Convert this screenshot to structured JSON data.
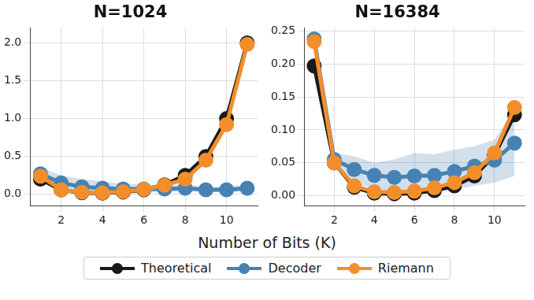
{
  "x_label": "Number of Bits (K)",
  "legend": "bottom",
  "chart_data": [
    {
      "type": "line",
      "title": "N=1024",
      "grid": true,
      "x": [
        1,
        2,
        3,
        4,
        5,
        6,
        7,
        8,
        9,
        10,
        11
      ],
      "xlim": [
        0.5,
        11.5
      ],
      "xticks": [
        2,
        4,
        6,
        8,
        10
      ],
      "ylim": [
        -0.15,
        2.2
      ],
      "yticks": [
        {
          "value": 0,
          "label": "0.0"
        },
        {
          "value": 0.5,
          "label": "0.5"
        },
        {
          "value": 1,
          "label": "1.0"
        },
        {
          "value": 1.5,
          "label": "1.5"
        },
        {
          "value": 2,
          "label": "2.0"
        }
      ],
      "series": [
        {
          "name": "Theoretical",
          "color": "#1a1a1a",
          "marker": "circle",
          "values": [
            0.2,
            0.06,
            0.02,
            0.015,
            0.03,
            0.06,
            0.125,
            0.25,
            0.5,
            1.0,
            2.0
          ]
        },
        {
          "name": "Decoder",
          "color": "#4682b4",
          "marker": "circle",
          "values": [
            0.27,
            0.15,
            0.1,
            0.08,
            0.07,
            0.07,
            0.07,
            0.08,
            0.06,
            0.06,
            0.08
          ],
          "lower": [
            0.18,
            0.08,
            0.03,
            0.02,
            0.02,
            0.02,
            0.03,
            0.04,
            0.03,
            0.03,
            0.04
          ],
          "upper": [
            0.35,
            0.25,
            0.2,
            0.17,
            0.14,
            0.13,
            0.12,
            0.13,
            0.1,
            0.1,
            0.13
          ]
        },
        {
          "name": "Riemann",
          "color": "#f28e2b",
          "marker": "circle",
          "values": [
            0.24,
            0.06,
            0.025,
            0.02,
            0.035,
            0.065,
            0.12,
            0.2,
            0.45,
            0.92,
            1.98
          ]
        }
      ]
    },
    {
      "type": "line",
      "title": "N=16384",
      "grid": true,
      "x": [
        1,
        2,
        3,
        4,
        5,
        6,
        7,
        8,
        9,
        10,
        11
      ],
      "xlim": [
        0.5,
        11.5
      ],
      "xticks": [
        2,
        4,
        6,
        8,
        10
      ],
      "ylim": [
        -0.015,
        0.255
      ],
      "yticks": [
        {
          "value": 0,
          "label": "0.00"
        },
        {
          "value": 0.05,
          "label": "0.05"
        },
        {
          "value": 0.1,
          "label": "0.10"
        },
        {
          "value": 0.15,
          "label": "0.15"
        },
        {
          "value": 0.2,
          "label": "0.20"
        },
        {
          "value": 0.25,
          "label": "0.25"
        }
      ],
      "series": [
        {
          "name": "Theoretical",
          "color": "#1a1a1a",
          "marker": "circle",
          "values": [
            0.197,
            0.05,
            0.013,
            0.004,
            0.003,
            0.004,
            0.008,
            0.015,
            0.03,
            0.062,
            0.123
          ]
        },
        {
          "name": "Decoder",
          "color": "#4682b4",
          "marker": "circle",
          "values": [
            0.238,
            0.055,
            0.04,
            0.031,
            0.028,
            0.03,
            0.031,
            0.037,
            0.045,
            0.054,
            0.08
          ],
          "lower": [
            0.23,
            0.045,
            0.02,
            0.01,
            0.005,
            0.005,
            0.005,
            0.01,
            0.015,
            0.02,
            0.03
          ],
          "upper": [
            0.245,
            0.065,
            0.06,
            0.05,
            0.055,
            0.065,
            0.063,
            0.07,
            0.075,
            0.085,
            0.13
          ]
        },
        {
          "name": "Riemann",
          "color": "#f28e2b",
          "marker": "circle",
          "values": [
            0.234,
            0.05,
            0.015,
            0.006,
            0.005,
            0.007,
            0.012,
            0.02,
            0.035,
            0.065,
            0.134
          ]
        }
      ]
    }
  ]
}
